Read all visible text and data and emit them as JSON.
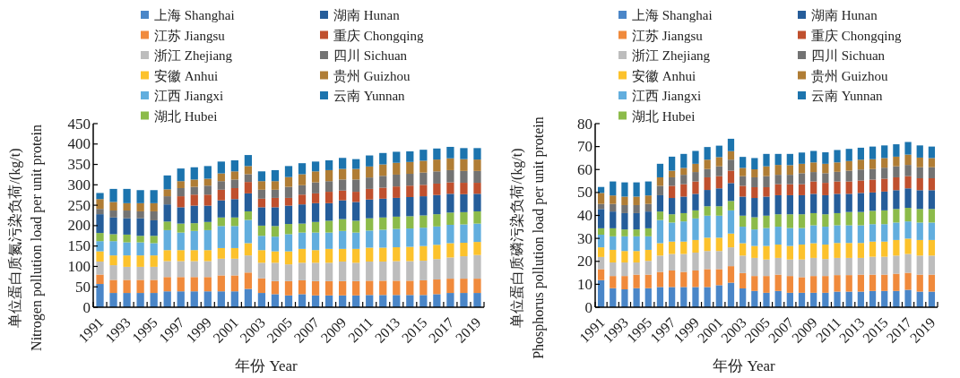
{
  "chart_data": [
    {
      "type": "bar",
      "stacked": true,
      "xlabel": "年份 Year",
      "ylabel": "单位蛋白质氮污染负荷/(kg/t) Nitrogen pollution load per unit protein",
      "legend": "top",
      "ylim": [
        0,
        450
      ],
      "yticks": [
        0,
        50,
        100,
        150,
        200,
        250,
        300,
        350,
        400,
        450
      ],
      "categories": [
        "1991",
        null,
        "1993",
        null,
        "1995",
        null,
        "1997",
        null,
        "1999",
        null,
        "2001",
        null,
        "2003",
        null,
        "2005",
        null,
        "2007",
        null,
        "2009",
        null,
        "2011",
        null,
        "2013",
        null,
        "2015",
        null,
        "2017",
        null,
        "2019"
      ],
      "series": [
        {
          "name": "上海 Shanghai",
          "color": "#4a86c8",
          "values": [
            57,
            35,
            35,
            35,
            35,
            39,
            39,
            39,
            39,
            39,
            39,
            45,
            35,
            32,
            29,
            32,
            29,
            29,
            29,
            29,
            30,
            30,
            30,
            30,
            30,
            32,
            35,
            35,
            35
          ]
        },
        {
          "name": "江苏 Jiangsu",
          "color": "#f08a3c",
          "values": [
            23,
            32,
            32,
            32,
            32,
            35,
            35,
            35,
            35,
            39,
            39,
            40,
            36,
            32,
            35,
            34,
            35,
            35,
            35,
            35,
            35,
            35,
            35,
            35,
            36,
            36,
            35,
            35,
            35
          ]
        },
        {
          "name": "浙江 Zhejiang",
          "color": "#bdbdbd",
          "values": [
            32,
            36,
            32,
            32,
            32,
            39,
            39,
            39,
            39,
            41,
            41,
            42,
            38,
            45,
            41,
            43,
            45,
            45,
            48,
            45,
            47,
            47,
            48,
            48,
            48,
            50,
            52,
            55,
            58
          ]
        },
        {
          "name": "安徽 Anhui",
          "color": "#fcc22c",
          "values": [
            25,
            24,
            28,
            28,
            28,
            27,
            27,
            27,
            27,
            26,
            26,
            30,
            31,
            28,
            32,
            34,
            31,
            34,
            31,
            34,
            34,
            34,
            34,
            35,
            36,
            35,
            35,
            33,
            32
          ]
        },
        {
          "name": "江西 Jiangxi",
          "color": "#62aede",
          "values": [
            25,
            35,
            32,
            32,
            30,
            49,
            43,
            47,
            49,
            54,
            54,
            57,
            35,
            36,
            42,
            40,
            43,
            40,
            44,
            40,
            42,
            44,
            45,
            45,
            45,
            45,
            45,
            45,
            45
          ]
        },
        {
          "name": "湖北 Hubei",
          "color": "#8cbb4a",
          "values": [
            20,
            17,
            19,
            16,
            18,
            21,
            22,
            19,
            20,
            21,
            21,
            21,
            25,
            26,
            25,
            22,
            26,
            29,
            29,
            29,
            30,
            30,
            30,
            30,
            30,
            30,
            30,
            30,
            30
          ]
        },
        {
          "name": "湖南 Hunan",
          "color": "#255d9a",
          "values": [
            46,
            41,
            40,
            43,
            38,
            42,
            40,
            43,
            40,
            42,
            45,
            44,
            45,
            46,
            45,
            47,
            46,
            43,
            46,
            46,
            46,
            46,
            46,
            47,
            47,
            47,
            46,
            44,
            43
          ]
        },
        {
          "name": "重庆 Chongqing",
          "color": "#c0502e",
          "values": [
            null,
            null,
            null,
            null,
            null,
            null,
            27,
            27,
            27,
            26,
            27,
            28,
            21,
            23,
            19,
            24,
            24,
            28,
            24,
            25,
            26,
            27,
            28,
            28,
            28,
            28,
            28,
            28,
            27
          ]
        },
        {
          "name": "四川 Sichuan",
          "color": "#737373",
          "values": [
            13,
            17,
            19,
            17,
            22,
            20,
            20,
            19,
            22,
            21,
            21,
            19,
            22,
            20,
            27,
            23,
            27,
            26,
            27,
            30,
            28,
            29,
            29,
            29,
            30,
            30,
            30,
            29,
            29
          ]
        },
        {
          "name": "贵州 Guizhou",
          "color": "#b07d35",
          "values": [
            24,
            21,
            18,
            20,
            20,
            17,
            17,
            18,
            17,
            19,
            20,
            20,
            21,
            21,
            24,
            27,
            27,
            27,
            26,
            26,
            27,
            28,
            29,
            29,
            29,
            29,
            29,
            29,
            28
          ]
        },
        {
          "name": "云南 Yunnan",
          "color": "#1c74ae",
          "values": [
            15,
            32,
            35,
            32,
            32,
            34,
            31,
            30,
            31,
            29,
            27,
            27,
            24,
            27,
            27,
            27,
            24,
            24,
            27,
            24,
            27,
            28,
            27,
            26,
            27,
            27,
            28,
            27,
            28
          ]
        }
      ]
    },
    {
      "type": "bar",
      "stacked": true,
      "xlabel": "年份 Year",
      "ylabel": "单位蛋白质磷污染负荷/(kg/t) Phosphorus pollution load per unit protein",
      "legend": "top",
      "ylim": [
        0,
        80
      ],
      "yticks": [
        0,
        10,
        20,
        30,
        40,
        50,
        60,
        70,
        80
      ],
      "categories": [
        "1991",
        null,
        "1993",
        null,
        "1995",
        null,
        "1997",
        null,
        "1999",
        null,
        "2001",
        null,
        "2003",
        null,
        "2005",
        null,
        "2007",
        null,
        "2009",
        null,
        "2011",
        null,
        "2013",
        null,
        "2015",
        null,
        "2017",
        null,
        "2019"
      ],
      "series": [
        {
          "name": "上海 Shanghai",
          "color": "#4a86c8",
          "values": [
            11.8,
            8.3,
            7.8,
            8.3,
            8.3,
            8.8,
            8.8,
            8.8,
            8.8,
            8.8,
            9.6,
            10.7,
            8.2,
            7.1,
            6.3,
            7.1,
            6.3,
            6.3,
            6.3,
            6.3,
            6.8,
            6.8,
            6.8,
            7.1,
            7.1,
            7.1,
            7.6,
            6.8,
            6.8
          ]
        },
        {
          "name": "江苏 Jiangsu",
          "color": "#f08a3c",
          "values": [
            4.8,
            5.3,
            5.8,
            5.9,
            5.9,
            6.6,
            7.2,
            6.6,
            7.2,
            7.8,
            7.0,
            7.2,
            6.7,
            6.5,
            7.3,
            7.1,
            7.3,
            6.8,
            7.3,
            7.3,
            7.2,
            7.2,
            7.4,
            7.1,
            7.1,
            7.5,
            7.4,
            7.4,
            7.4
          ]
        },
        {
          "name": "浙江 Zhejiang",
          "color": "#bdbdbd",
          "values": [
            5.3,
            5.9,
            5.9,
            5.3,
            6.0,
            7.1,
            7.2,
            7.8,
            7.8,
            7.9,
            7.9,
            8.2,
            7.6,
            7.9,
            7.2,
            7.3,
            7.2,
            7.7,
            7.9,
            7.4,
            7.5,
            7.5,
            7.3,
            7.8,
            7.8,
            7.9,
            8.2,
            8.3,
            8.3
          ]
        },
        {
          "name": "安徽 Anhui",
          "color": "#fcc22c",
          "values": [
            4.2,
            5.5,
            5.0,
            5.0,
            4.8,
            5.4,
            5.4,
            5.4,
            5.5,
            5.8,
            5.8,
            6.0,
            5.4,
            5.2,
            5.9,
            5.8,
            5.9,
            6.5,
            6.4,
            6.3,
            6.5,
            6.5,
            6.5,
            6.6,
            6.6,
            6.8,
            6.7,
            6.8,
            6.8
          ]
        },
        {
          "name": "江西 Jiangxi",
          "color": "#62aede",
          "values": [
            5.5,
            5.9,
            6.4,
            6.4,
            5.9,
            10.1,
            8.3,
            8.8,
            9.4,
            9.6,
            9.6,
            10.1,
            7.2,
            7.2,
            7.8,
            7.8,
            7.8,
            7.2,
            7.8,
            7.8,
            7.7,
            7.7,
            7.7,
            7.6,
            7.6,
            7.6,
            7.5,
            7.6,
            7.6
          ]
        },
        {
          "name": "湖北 Hubei",
          "color": "#8cbb4a",
          "values": [
            2.8,
            3.5,
            3.0,
            3.0,
            3.5,
            3.7,
            3.6,
            3.6,
            3.5,
            4.1,
            4.1,
            4.1,
            4.8,
            5.3,
            5.4,
            5.4,
            6.0,
            6.0,
            5.3,
            5.4,
            5.3,
            5.8,
            5.8,
            5.8,
            6.0,
            5.9,
            5.9,
            5.9,
            5.9
          ]
        },
        {
          "name": "湖南 Hunan",
          "color": "#255d9a",
          "values": [
            8.4,
            7.3,
            7.1,
            7.1,
            7.3,
            7.1,
            7.1,
            7.2,
            7.2,
            7.1,
            7.8,
            7.8,
            8.3,
            8.4,
            8.3,
            8.3,
            8.3,
            8.3,
            8.4,
            8.3,
            8.4,
            7.9,
            8.3,
            8.0,
            8.2,
            8.2,
            8.5,
            8.2,
            8.2
          ]
        },
        {
          "name": "重庆 Chongqing",
          "color": "#c0502e",
          "values": [
            null,
            null,
            null,
            null,
            null,
            null,
            5.3,
            5.4,
            5.4,
            5.5,
            5.3,
            5.4,
            4.7,
            4.7,
            4.1,
            4.8,
            4.8,
            4.8,
            5.4,
            5.4,
            5.4,
            5.4,
            5.4,
            5.6,
            5.6,
            5.6,
            5.3,
            5.2,
            5.2
          ]
        },
        {
          "name": "四川 Sichuan",
          "color": "#737373",
          "values": [
            2.2,
            3.3,
            3.5,
            3.5,
            3.3,
            4.1,
            3.7,
            4.1,
            4.1,
            3.6,
            4.3,
            4.8,
            4.2,
            4.3,
            4.8,
            4.1,
            4.1,
            4.8,
            4.1,
            4.2,
            4.2,
            4.7,
            4.8,
            4.6,
            4.8,
            4.8,
            4.9,
            4.8,
            4.8
          ]
        },
        {
          "name": "贵州 Guizhou",
          "color": "#b07d35",
          "values": [
            4.8,
            3.7,
            3.7,
            3.7,
            3.7,
            3.7,
            2.9,
            3.0,
            3.6,
            4.1,
            4.0,
            3.7,
            3.6,
            3.5,
            4.3,
            4.3,
            4.2,
            4.1,
            4.2,
            4.1,
            4.1,
            4.2,
            4.3,
            4.3,
            4.2,
            4.2,
            4.5,
            4.2,
            4.0
          ]
        },
        {
          "name": "云南 Yunnan",
          "color": "#1c74ae",
          "values": [
            2.6,
            6.1,
            6.2,
            6.2,
            6.1,
            5.9,
            6.1,
            6.1,
            5.6,
            5.5,
            5.0,
            5.4,
            4.8,
            4.9,
            5.4,
            4.8,
            4.9,
            4.9,
            5.0,
            5.0,
            5.4,
            5.3,
            5.2,
            5.5,
            5.5,
            5.4,
            5.5,
            5.3,
            5.0
          ]
        }
      ]
    }
  ]
}
